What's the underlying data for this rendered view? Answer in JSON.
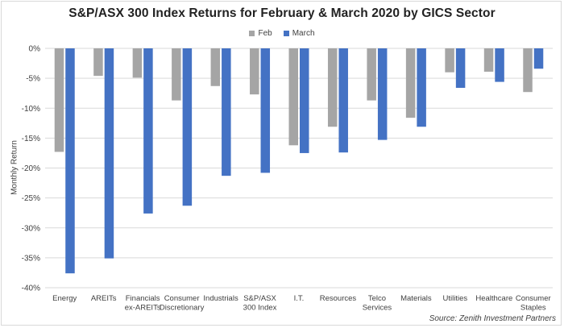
{
  "source": "Source: Zenith Investment Partners",
  "chart_data": {
    "type": "bar",
    "title": "S&P/ASX 300 Index Returns for February & March 2020 by GICS Sector",
    "ylabel": "Monthly Return",
    "xlabel": "",
    "ylim": [
      -40,
      0
    ],
    "yticks": [
      0,
      -5,
      -10,
      -15,
      -20,
      -25,
      -30,
      -35,
      -40
    ],
    "ytick_labels": [
      "0%",
      "-5%",
      "-10%",
      "-15%",
      "-20%",
      "-25%",
      "-30%",
      "-35%",
      "-40%"
    ],
    "grid": true,
    "legend_position": "top-center",
    "categories": [
      [
        "Energy"
      ],
      [
        "AREITs"
      ],
      [
        "Financials",
        "ex-AREITs"
      ],
      [
        "Consumer",
        "Discretionary"
      ],
      [
        "Industrials"
      ],
      [
        "S&P/ASX",
        "300 Index"
      ],
      [
        "I.T."
      ],
      [
        "Resources"
      ],
      [
        "Telco",
        "Services"
      ],
      [
        "Materials"
      ],
      [
        "Utilities"
      ],
      [
        "Healthcare"
      ],
      [
        "Consumer",
        "Staples"
      ]
    ],
    "series": [
      {
        "name": "Feb",
        "color": "#a5a5a5",
        "values": [
          -17.3,
          -4.6,
          -4.9,
          -8.7,
          -6.3,
          -7.7,
          -16.2,
          -13.1,
          -8.7,
          -11.6,
          -4.0,
          -3.9,
          -7.3
        ]
      },
      {
        "name": "March",
        "color": "#4472c4",
        "values": [
          -37.6,
          -35.1,
          -27.6,
          -26.3,
          -21.3,
          -20.8,
          -17.5,
          -17.4,
          -15.3,
          -13.1,
          -6.6,
          -5.6,
          -3.4
        ]
      }
    ]
  }
}
